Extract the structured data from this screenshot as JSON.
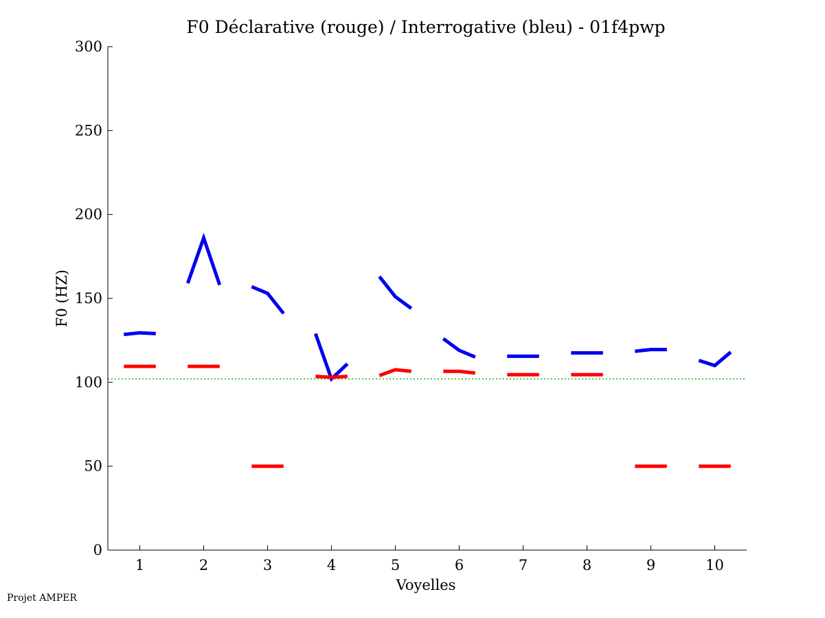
{
  "chart_data": {
    "type": "line",
    "title": "F0 Déclarative (rouge) / Interrogative (bleu) - 01f4pwp",
    "xlabel": "Voyelles",
    "ylabel": "F0 (HZ)",
    "xlim": [
      0.5,
      10.5
    ],
    "ylim": [
      0,
      300
    ],
    "xticks": [
      1,
      2,
      3,
      4,
      5,
      6,
      7,
      8,
      9,
      10
    ],
    "xtick_labels": [
      "1",
      "2",
      "3",
      "4",
      "5",
      "6",
      "7",
      "8",
      "9",
      "10"
    ],
    "yticks": [
      0,
      50,
      100,
      150,
      200,
      250,
      300
    ],
    "ytick_labels": [
      "0",
      "50",
      "100",
      "150",
      "200",
      "250",
      "300"
    ],
    "reference_line": {
      "y": 102,
      "color": "#00aa00",
      "style": "dotted"
    },
    "sample_offsets": [
      -0.25,
      0,
      0.25
    ],
    "series": [
      {
        "name": "Interrogative (bleu)",
        "color": "#0000ee",
        "segments": [
          {
            "vowel": 1,
            "values": [
              128.5,
              129.5,
              129
            ]
          },
          {
            "vowel": 2,
            "values": [
              159,
              186,
              158
            ]
          },
          {
            "vowel": 3,
            "values": [
              157,
              153,
              141
            ]
          },
          {
            "vowel": 4,
            "values": [
              129,
              102,
              111
            ]
          },
          {
            "vowel": 5,
            "values": [
              163,
              151,
              144
            ]
          },
          {
            "vowel": 6,
            "values": [
              126,
              119,
              115
            ]
          },
          {
            "vowel": 7,
            "values": [
              115.5,
              115.5,
              115.5
            ]
          },
          {
            "vowel": 8,
            "values": [
              117.5,
              117.5,
              117.5
            ]
          },
          {
            "vowel": 9,
            "values": [
              118.5,
              119.5,
              119.5
            ]
          },
          {
            "vowel": 10,
            "values": [
              113,
              110,
              118
            ]
          }
        ]
      },
      {
        "name": "Déclarative (rouge)",
        "color": "#ff0000",
        "segments": [
          {
            "vowel": 1,
            "values": [
              109.5,
              109.5,
              109.5
            ]
          },
          {
            "vowel": 2,
            "values": [
              109.5,
              109.5,
              109.5
            ]
          },
          {
            "vowel": 3,
            "values": [
              50,
              50,
              50
            ]
          },
          {
            "vowel": 4,
            "values": [
              103.5,
              103,
              103.5
            ]
          },
          {
            "vowel": 5,
            "values": [
              104,
              107.5,
              106.5
            ]
          },
          {
            "vowel": 6,
            "values": [
              106.5,
              106.5,
              105.5
            ]
          },
          {
            "vowel": 7,
            "values": [
              104.5,
              104.5,
              104.5
            ]
          },
          {
            "vowel": 8,
            "values": [
              104.5,
              104.5,
              104.5
            ]
          },
          {
            "vowel": 9,
            "values": [
              50,
              50,
              50
            ]
          },
          {
            "vowel": 10,
            "values": [
              50,
              50,
              50
            ]
          }
        ]
      }
    ]
  },
  "footer": {
    "text": "Projet AMPER"
  }
}
